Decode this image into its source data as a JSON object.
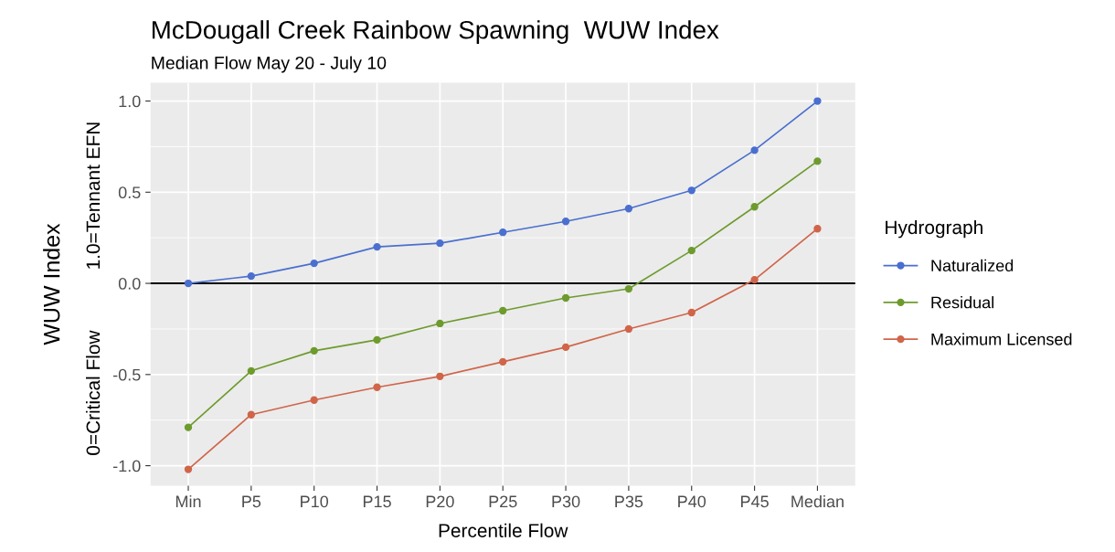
{
  "chart_data": {
    "type": "line",
    "title": "McDougall Creek Rainbow Spawning  WUW Index",
    "subtitle": "Median Flow May 20 - July 10",
    "xlabel": "Percentile Flow",
    "ylabel": "WUW Index",
    "legend_title": "Hydrograph",
    "annotations": [
      "0=Critical Flow",
      "1.0=Tennant EFN"
    ],
    "categories": [
      "Min",
      "P5",
      "P10",
      "P15",
      "P20",
      "P25",
      "P30",
      "P35",
      "P40",
      "P45",
      "Median"
    ],
    "series": [
      {
        "name": "Naturalized",
        "color": "#4a6fcf",
        "values": [
          0.0,
          0.04,
          0.11,
          0.2,
          0.22,
          0.28,
          0.34,
          0.41,
          0.51,
          0.73,
          1.0
        ]
      },
      {
        "name": "Residual",
        "color": "#6e9b2e",
        "values": [
          -0.79,
          -0.48,
          -0.37,
          -0.31,
          -0.22,
          -0.15,
          -0.08,
          -0.03,
          0.18,
          0.42,
          0.67
        ]
      },
      {
        "name": "Maximum Licensed",
        "color": "#d0654a",
        "values": [
          -1.02,
          -0.72,
          -0.64,
          -0.57,
          -0.51,
          -0.43,
          -0.35,
          -0.25,
          -0.16,
          0.02,
          0.3
        ]
      }
    ],
    "ylim": [
      -1.11,
      1.1
    ],
    "yticks": [
      {
        "value": -1.0,
        "label": "-1.0"
      },
      {
        "value": -0.5,
        "label": "-0.5"
      },
      {
        "value": 0.0,
        "label": "0.0"
      },
      {
        "value": 0.5,
        "label": "0.5"
      },
      {
        "value": 1.0,
        "label": "1.0"
      }
    ],
    "ref_lines": [
      {
        "axis": "y",
        "value": 0,
        "color": "#000000"
      }
    ],
    "grid": true,
    "legend": "right",
    "marker": "circle",
    "line_style": "solid"
  }
}
